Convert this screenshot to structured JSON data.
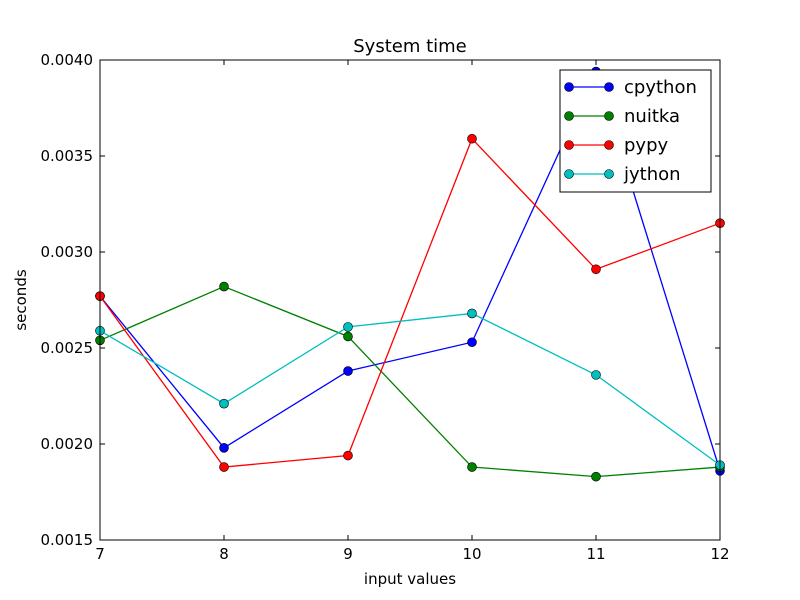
{
  "chart_data": {
    "type": "line",
    "title": "System time",
    "xlabel": "input values",
    "ylabel": "seconds",
    "xlim": [
      7,
      12
    ],
    "ylim": [
      0.0015,
      0.004
    ],
    "x": [
      7,
      8,
      9,
      10,
      11,
      12
    ],
    "xticks": [
      "7",
      "8",
      "9",
      "10",
      "11",
      "12"
    ],
    "yticks": [
      {
        "value": 0.0015,
        "label": "0.0015"
      },
      {
        "value": 0.002,
        "label": "0.0020"
      },
      {
        "value": 0.0025,
        "label": "0.0025"
      },
      {
        "value": 0.003,
        "label": "0.0030"
      },
      {
        "value": 0.0035,
        "label": "0.0035"
      },
      {
        "value": 0.004,
        "label": "0.0040"
      }
    ],
    "grid": false,
    "legend_position": "top-right",
    "series": [
      {
        "name": "cpython",
        "color": "#0000ff",
        "values": [
          0.00277,
          0.00198,
          0.00238,
          0.00253,
          0.00394,
          0.00186
        ]
      },
      {
        "name": "nuitka",
        "color": "#008000",
        "values": [
          0.00254,
          0.00282,
          0.00256,
          0.00188,
          0.00183,
          0.00188
        ]
      },
      {
        "name": "pypy",
        "color": "#ff0000",
        "values": [
          0.00277,
          0.00188,
          0.00194,
          0.00359,
          0.00291,
          0.00315
        ]
      },
      {
        "name": "jython",
        "color": "#00bfbf",
        "values": [
          0.00259,
          0.00221,
          0.00261,
          0.00268,
          0.00236,
          0.00189
        ]
      }
    ]
  }
}
